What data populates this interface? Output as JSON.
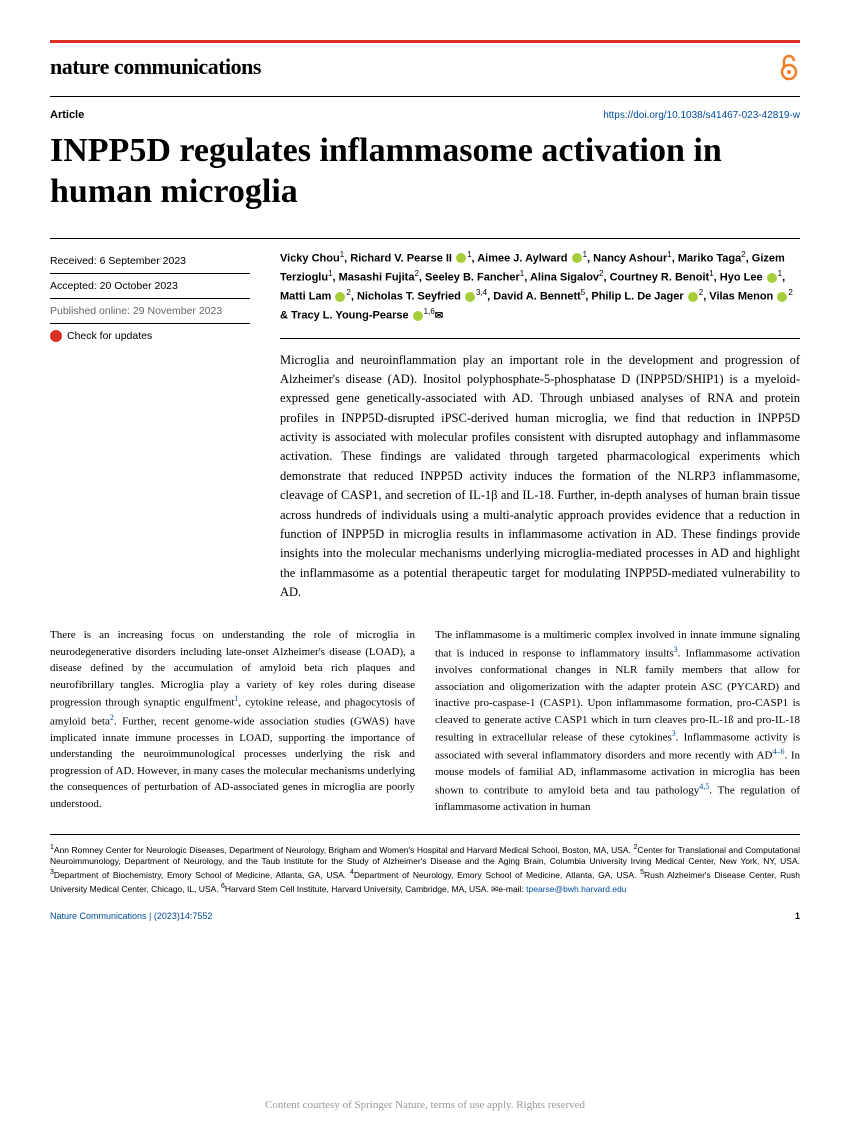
{
  "journal": "nature communications",
  "article_label": "Article",
  "doi": "https://doi.org/10.1038/s41467-023-42819-w",
  "title": "INPP5D regulates inflammasome activation in human microglia",
  "meta": {
    "received": "Received: 6 September 2023",
    "accepted": "Accepted: 20 October 2023",
    "published": "Published online: 29 November 2023",
    "check_updates": "Check for updates"
  },
  "authors_html": "Vicky Chou<sup class='sup'>1</sup>, Richard V. Pearse II <span class='orcid'></span><sup class='sup'>1</sup>, Aimee J. Aylward <span class='orcid'></span><sup class='sup'>1</sup>, Nancy Ashour<sup class='sup'>1</sup>, Mariko Taga<sup class='sup'>2</sup>, Gizem Terzioglu<sup class='sup'>1</sup>, Masashi Fujita<sup class='sup'>2</sup>, Seeley B. Fancher<sup class='sup'>1</sup>, Alina Sigalov<sup class='sup'>2</sup>, Courtney R. Benoit<sup class='sup'>1</sup>, Hyo Lee <span class='orcid'></span><sup class='sup'>1</sup>, Matti Lam <span class='orcid'></span><sup class='sup'>2</sup>, Nicholas T. Seyfried <span class='orcid'></span><sup class='sup'>3,4</sup>, David A. Bennett<sup class='sup'>5</sup>, Philip L. De Jager <span class='orcid'></span><sup class='sup'>2</sup>, Vilas Menon <span class='orcid'></span><sup class='sup'>2</sup> & Tracy L. Young-Pearse <span class='orcid'></span><sup class='sup'>1,6</sup><span class='envelope'>✉</span>",
  "abstract": "Microglia and neuroinflammation play an important role in the development and progression of Alzheimer's disease (AD). Inositol polyphosphate-5-phosphatase D (INPP5D/SHIP1) is a myeloid-expressed gene genetically-associated with AD. Through unbiased analyses of RNA and protein profiles in INPP5D-disrupted iPSC-derived human microglia, we find that reduction in INPP5D activity is associated with molecular profiles consistent with disrupted autophagy and inflammasome activation. These findings are validated through targeted pharmacological experiments which demonstrate that reduced INPP5D activity induces the formation of the NLRP3 inflammasome, cleavage of CASP1, and secretion of IL-1β and IL-18. Further, in-depth analyses of human brain tissue across hundreds of individuals using a multi-analytic approach provides evidence that a reduction in function of INPP5D in microglia results in inflammasome activation in AD. These findings provide insights into the molecular mechanisms underlying microglia-mediated processes in AD and highlight the inflammasome as a potential therapeutic target for modulating INPP5D-mediated vulnerability to AD.",
  "body_col1": "There is an increasing focus on understanding the role of microglia in neurodegenerative disorders including late-onset Alzheimer's disease (LOAD), a disease defined by the accumulation of amyloid beta rich plaques and neurofibrillary tangles. Microglia play a variety of key roles during disease progression through synaptic engulfment<span class='ref-sup'>1</span>, cytokine release, and phagocytosis of amyloid beta<span class='ref-sup'>2</span>. Further, recent genome-wide association studies (GWAS) have implicated innate immune processes in LOAD, supporting the importance of understanding the neuroimmunological processes underlying the risk and progression of AD. However, in many cases the molecular mechanisms underlying the consequences of perturbation of AD-associated genes in microglia are poorly understood.",
  "body_col2": "The inflammasome is a multimeric complex involved in innate immune signaling that is induced in response to inflammatory insults<span class='ref-sup'>3</span>. Inflammasome activation involves conformational changes in NLR family members that allow for association and oligomerization with the adapter protein ASC (PYCARD) and inactive pro-caspase-1 (CASP1). Upon inflammasome formation, pro-CASP1 is cleaved to generate active CASP1 which in turn cleaves pro-IL-1ß and pro-IL-18 resulting in extracellular release of these cytokines<span class='ref-sup'>3</span>. Inflammasome activity is associated with several inflammatory disorders and more recently with AD<span class='ref-sup'>4–6</span>. In mouse models of familial AD, inflammasome activation in microglia has been shown to contribute to amyloid beta and tau pathology<span class='ref-sup'>4,5</span>. The regulation of inflammasome activation in human",
  "affiliations": "<span class='aff-sup'>1</span>Ann Romney Center for Neurologic Diseases, Department of Neurology, Brigham and Women's Hospital and Harvard Medical School, Boston, MA, USA. <span class='aff-sup'>2</span>Center for Translational and Computational Neuroimmunology, Department of Neurology, and the Taub Institute for the Study of Alzheimer's Disease and the Aging Brain, Columbia University Irving Medical Center, New York, NY, USA. <span class='aff-sup'>3</span>Department of Biochemistry, Emory School of Medicine, Atlanta, GA, USA. <span class='aff-sup'>4</span>Department of Neurology, Emory School of Medicine, Atlanta, GA, USA. <span class='aff-sup'>5</span>Rush Alzheimer's Disease Center, Rush University Medical Center, Chicago, IL, USA. <span class='aff-sup'>6</span>Harvard Stem Cell Institute, Harvard University, Cambridge, MA, USA. ✉e-mail: <span class='email-link'>tpearse@bwh.harvard.edu</span>",
  "footer_citation": "Nature Communications | (2023)14:7552",
  "page_number": "1",
  "watermark": "Content courtesy of Springer Nature, terms of use apply. Rights reserved",
  "colors": {
    "accent_red": "#d93025",
    "link_blue": "#004b9b",
    "orcid_green": "#a6ce39",
    "gray_text": "#666666"
  }
}
